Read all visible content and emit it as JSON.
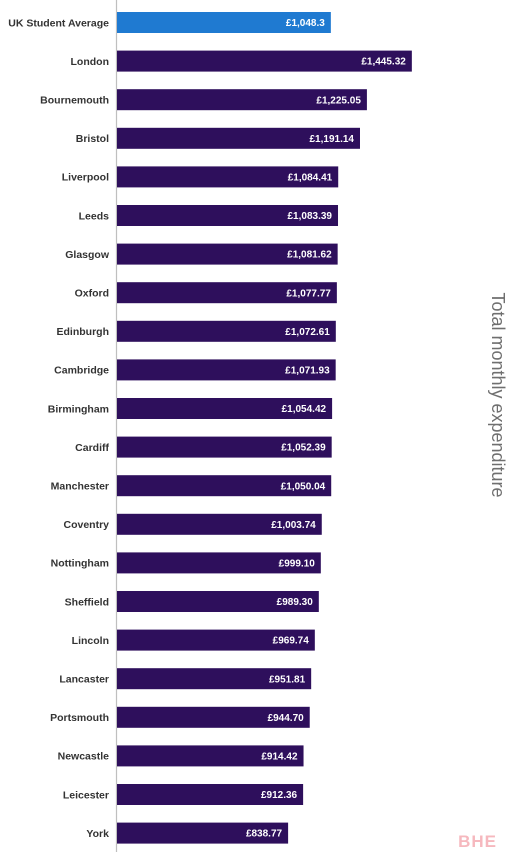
{
  "chart_data": {
    "type": "bar",
    "orientation": "horizontal",
    "ylabel": "Total monthly expenditure",
    "categories": [
      "UK Student Average",
      "London",
      "Bournemouth",
      "Bristol",
      "Liverpool",
      "Leeds",
      "Glasgow",
      "Oxford",
      "Edinburgh",
      "Cambridge",
      "Birmingham",
      "Cardiff",
      "Manchester",
      "Coventry",
      "Nottingham",
      "Sheffield",
      "Lincoln",
      "Lancaster",
      "Portsmouth",
      "Newcastle",
      "Leicester",
      "York"
    ],
    "values": [
      1048.3,
      1445.32,
      1225.05,
      1191.14,
      1084.41,
      1083.39,
      1081.62,
      1077.77,
      1072.61,
      1071.93,
      1054.42,
      1052.39,
      1050.04,
      1003.74,
      999.1,
      989.3,
      969.74,
      951.81,
      944.7,
      914.42,
      912.36,
      838.77
    ],
    "value_labels": [
      "£1,048.3",
      "£1,445.32",
      "£1,225.05",
      "£1,191.14",
      "£1,084.41",
      "£1,083.39",
      "£1,081.62",
      "£1,077.77",
      "£1,072.61",
      "£1,071.93",
      "£1,054.42",
      "£1,052.39",
      "£1,050.04",
      "£1,003.74",
      "£999.10",
      "£989.30",
      "£969.74",
      "£951.81",
      "£944.70",
      "£914.42",
      "£912.36",
      "£838.77"
    ],
    "xlim": [
      0,
      1500
    ],
    "grid": false,
    "legend": "none",
    "colors": {
      "highlight": "#1f7ad1",
      "bar": "#2e0f5c",
      "axis": "#bfbfbf",
      "category_text": "#333333",
      "axis_title_text": "#6f6f6f"
    }
  },
  "watermark": {
    "text": "BHE",
    "color": "#f6b8be"
  }
}
